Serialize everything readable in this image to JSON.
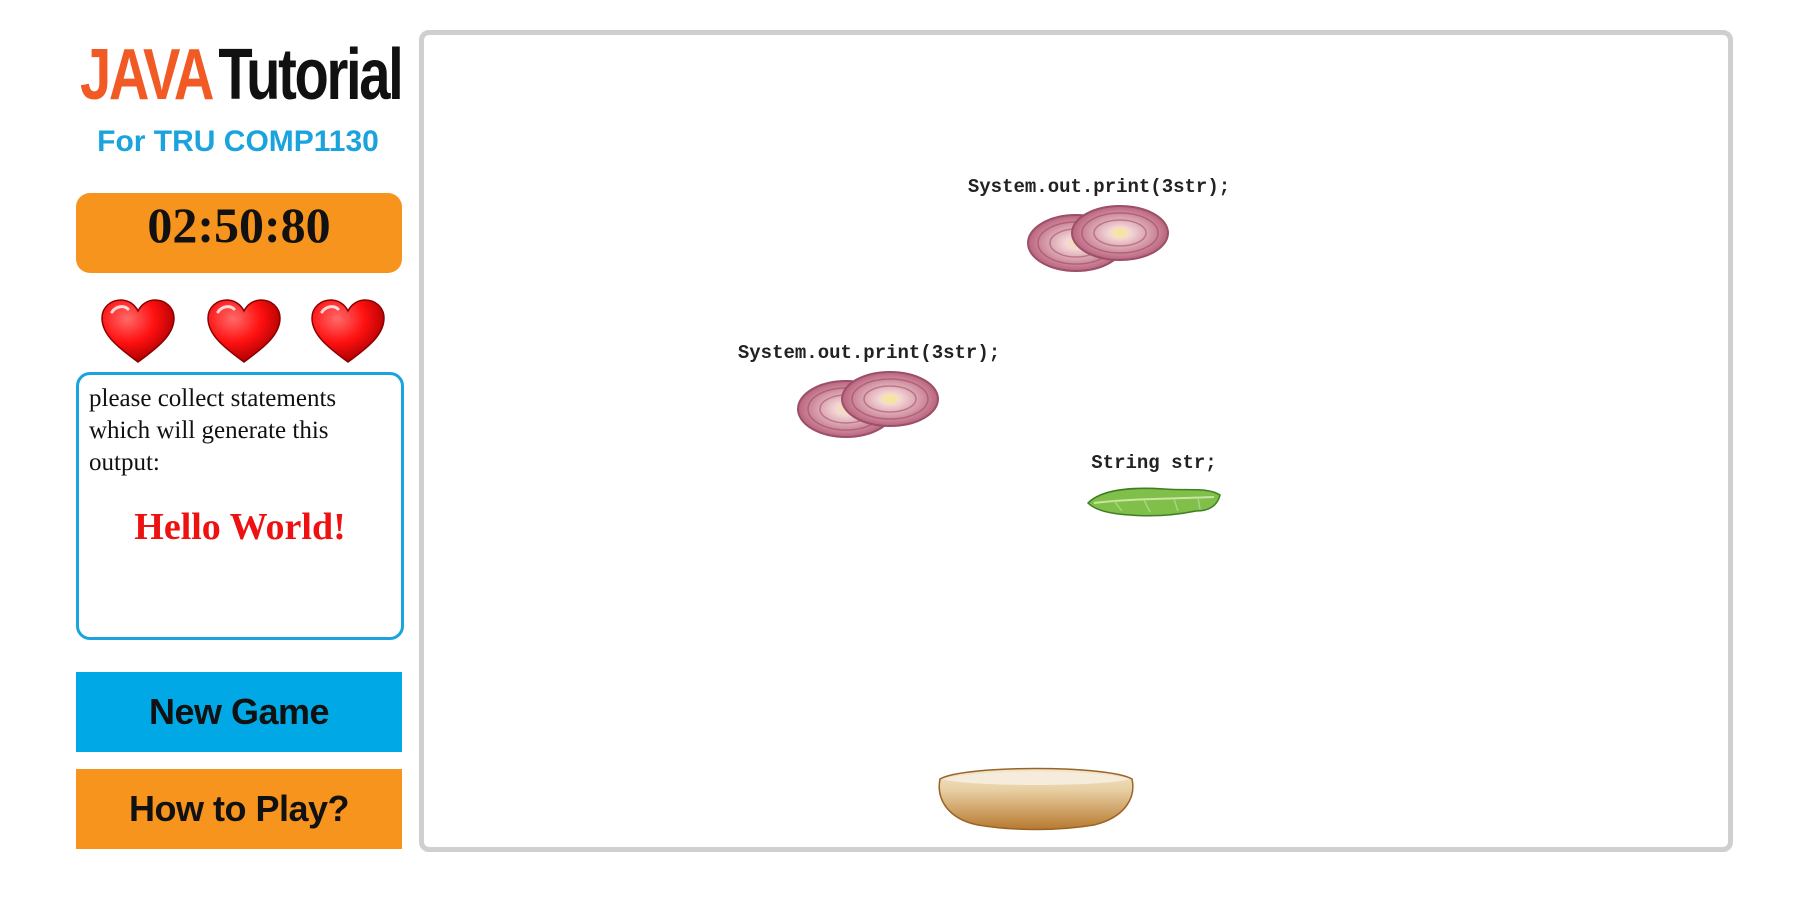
{
  "logo": {
    "java": "JAVA",
    "tutorial": "Tutorial",
    "subtitle": "For TRU COMP1130"
  },
  "timer": "02:50:80",
  "lives": {
    "count": 3,
    "icon": "heart-icon",
    "color": "#ee1111"
  },
  "instructions": {
    "text": "please collect statements which will generate this output:",
    "target_output": "Hello World!"
  },
  "buttons": {
    "new_game": "New Game",
    "how_to_play": "How to Play?"
  },
  "board": {
    "items": [
      {
        "statement": "System.out.print(3str);",
        "food": "onion-icon"
      },
      {
        "statement": "System.out.print(3str);",
        "food": "onion-icon"
      },
      {
        "statement": "String str;",
        "food": "lettuce-icon"
      }
    ],
    "player": "bun-icon"
  },
  "colors": {
    "accent_orange": "#f7941d",
    "accent_blue": "#00a9e6",
    "logo_orange": "#f15a24",
    "logo_blue": "#1aa3dd",
    "target_red": "#ee1111"
  }
}
